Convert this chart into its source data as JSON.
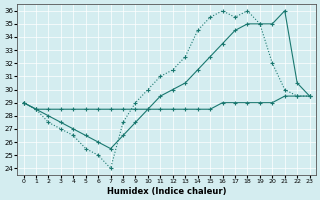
{
  "xlabel": "Humidex (Indice chaleur)",
  "bg_color": "#d4edf0",
  "line_color": "#1a7870",
  "xlim": [
    -0.5,
    23.5
  ],
  "ylim": [
    23.5,
    36.5
  ],
  "xticks": [
    0,
    1,
    2,
    3,
    4,
    5,
    6,
    7,
    8,
    9,
    10,
    11,
    12,
    13,
    14,
    15,
    16,
    17,
    18,
    19,
    20,
    21,
    22,
    23
  ],
  "yticks": [
    24,
    25,
    26,
    27,
    28,
    29,
    30,
    31,
    32,
    33,
    34,
    35,
    36
  ],
  "line1_x": [
    0,
    1,
    2,
    3,
    4,
    5,
    6,
    7,
    8,
    9,
    10,
    11,
    12,
    13,
    14,
    15,
    16,
    17,
    18,
    19,
    20,
    21,
    22,
    23
  ],
  "line1_y": [
    29,
    28.5,
    27.5,
    27,
    26.5,
    25.5,
    25.0,
    24.0,
    27.5,
    29.0,
    30.0,
    31.0,
    31.5,
    32.5,
    34.5,
    35.5,
    36.0,
    35.5,
    36.0,
    35.0,
    32.0,
    30.0,
    29.5,
    29.5
  ],
  "line2_x": [
    0,
    1,
    2,
    3,
    4,
    5,
    6,
    7,
    8,
    9,
    10,
    11,
    12,
    13,
    14,
    15,
    16,
    17,
    18,
    19,
    20,
    21,
    22,
    23
  ],
  "line2_y": [
    29,
    28.5,
    28.0,
    27.5,
    27.0,
    26.5,
    26.0,
    25.5,
    26.5,
    27.5,
    28.5,
    29.5,
    30.0,
    30.5,
    31.5,
    32.5,
    33.5,
    34.5,
    35.0,
    35.0,
    35.0,
    36.0,
    30.5,
    29.5
  ],
  "line3_x": [
    0,
    1,
    2,
    3,
    4,
    5,
    6,
    7,
    8,
    9,
    10,
    11,
    12,
    13,
    14,
    15,
    16,
    17,
    18,
    19,
    20,
    21,
    22,
    23
  ],
  "line3_y": [
    29,
    28.5,
    28.5,
    28.5,
    28.5,
    28.5,
    28.5,
    28.5,
    28.5,
    28.5,
    28.5,
    28.5,
    28.5,
    28.5,
    28.5,
    28.5,
    29.0,
    29.0,
    29.0,
    29.0,
    29.0,
    29.5,
    29.5,
    29.5
  ]
}
